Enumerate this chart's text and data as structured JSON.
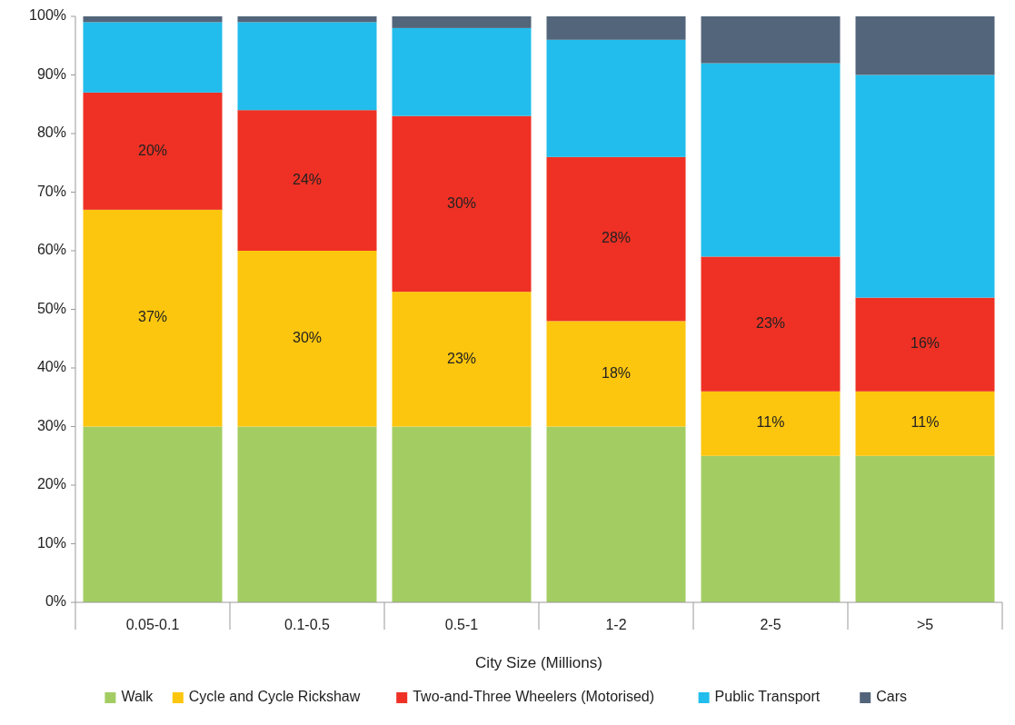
{
  "chart_data": {
    "type": "bar",
    "stacked": true,
    "xlabel": "City Size (Millions)",
    "categories": [
      "0.05-0.1",
      "0.1-0.5",
      "0.5-1",
      "1-2",
      "2-5",
      ">5"
    ],
    "ylim": [
      0,
      100
    ],
    "yticks": [
      {
        "value": 0,
        "label": "0%"
      },
      {
        "value": 10,
        "label": "10%"
      },
      {
        "value": 20,
        "label": "20%"
      },
      {
        "value": 30,
        "label": "30%"
      },
      {
        "value": 40,
        "label": "40%"
      },
      {
        "value": 50,
        "label": "50%"
      },
      {
        "value": 60,
        "label": "60%"
      },
      {
        "value": 70,
        "label": "70%"
      },
      {
        "value": 80,
        "label": "80%"
      },
      {
        "value": 90,
        "label": "90%"
      },
      {
        "value": 100,
        "label": "100%"
      }
    ],
    "legend": "bottom",
    "series": [
      {
        "name": "Walk",
        "color": "#a3cd63",
        "values": [
          30,
          30,
          30,
          30,
          25,
          25
        ]
      },
      {
        "name": "Cycle and Cycle Rickshaw",
        "color": "#fdc60e",
        "values": [
          37,
          30,
          23,
          18,
          11,
          11
        ],
        "value_labels": [
          "37%",
          "30%",
          "23%",
          "18%",
          "11%",
          "11%"
        ]
      },
      {
        "name": "Two-and-Three Wheelers (Motorised)",
        "color": "#ee3124",
        "values": [
          20,
          24,
          30,
          28,
          23,
          16
        ],
        "value_labels": [
          "20%",
          "24%",
          "30%",
          "28%",
          "23%",
          "16%"
        ]
      },
      {
        "name": "Public Transport",
        "color": "#22bdec",
        "values": [
          12,
          15,
          15,
          20,
          33,
          38
        ]
      },
      {
        "name": "Cars",
        "color": "#53657a",
        "values": [
          1,
          1,
          2,
          4,
          8,
          10
        ]
      }
    ]
  }
}
